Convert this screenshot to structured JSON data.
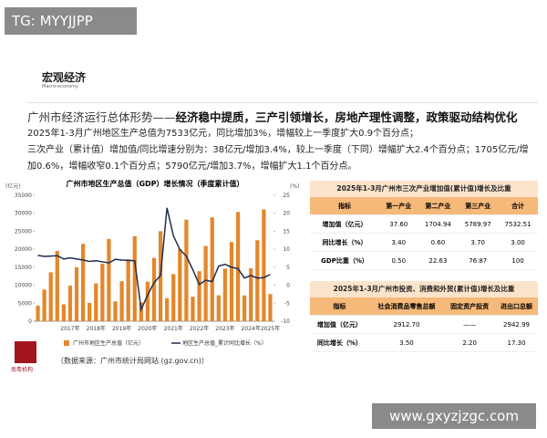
{
  "watermark": "TG: MYYJJPP",
  "section": {
    "title": "宏观经济",
    "subtitle": "Macro-economy"
  },
  "headline": {
    "lead": "广州市经济运行总体形势——",
    "emphasis": "经济稳中提质，三产引领增长，房地产理性调整，政策驱动结构优化"
  },
  "summary": [
    "2025年1-3月广州地区生产总值为7533亿元，同比增加3%，增幅较上一季度扩大0.9个百分点；",
    "三次产业（累计值）增加值/同比增速分别为：38亿元/增加3.4%，较上一季度（下同）增幅扩大2.4个百分点；1705亿元/增加0.6%，增幅收窄0.1个百分点；5790亿元/增加3.7%，增幅扩大1.1个百分点。"
  ],
  "chart_data": {
    "type": "bar",
    "title": "广州市地区生产总值（GDP）增长情况（季度累计值）",
    "ylabel": "(亿元)",
    "y2label": "(%)",
    "categories": [
      null,
      null,
      null,
      null,
      null,
      "2017年",
      null,
      null,
      null,
      "2018年",
      null,
      null,
      null,
      "2019年",
      null,
      null,
      null,
      "2020年",
      null,
      null,
      null,
      "2021年",
      null,
      null,
      null,
      "2022年",
      null,
      null,
      null,
      "2023年",
      null,
      null,
      null,
      "2024年",
      null,
      null,
      "2025年"
    ],
    "series": [
      {
        "name": "广州市地区生产总值（亿元）",
        "color": "#e3872c",
        "values": [
          4300,
          8800,
          13600,
          19547,
          4700,
          9900,
          15000,
          21503,
          5100,
          10500,
          16000,
          22859,
          5500,
          11100,
          17200,
          23628,
          5230,
          11000,
          17600,
          25019,
          6400,
          13100,
          20000,
          28232,
          6800,
          13900,
          20900,
          28839,
          7200,
          14600,
          22000,
          30356,
          7161,
          14700,
          22500,
          31032,
          7533
        ]
      },
      {
        "name": "地区生产总值_累计同比增长（%）",
        "type": "line",
        "axis": "y2",
        "color": "#1f2d4f",
        "values": [
          8.3,
          8.0,
          8.1,
          8.2,
          7.3,
          7.6,
          7.3,
          7.0,
          6.6,
          6.8,
          6.5,
          6.2,
          7.2,
          7.0,
          6.9,
          6.8,
          -6.8,
          -2.7,
          0.7,
          2.7,
          21.5,
          13.7,
          9.9,
          8.1,
          4.3,
          0.2,
          1.4,
          1.0,
          5.3,
          5.8,
          5.0,
          4.6,
          2.0,
          2.7,
          2.0,
          2.1,
          3.0
        ]
      }
    ],
    "ylim": [
      0,
      35000
    ],
    "yticks": [
      0,
      5000,
      10000,
      15000,
      20000,
      25000,
      30000,
      35000
    ],
    "y2lim": [
      -10,
      25
    ],
    "y2ticks": [
      -10,
      -5,
      0,
      5,
      10,
      15,
      20,
      25
    ]
  },
  "tables": [
    {
      "title": "2025年1-3月广州市三次产业增加值(累计值)增长及比重",
      "header": [
        "指标",
        "第一产业",
        "第二产业",
        "第三产业",
        "合计"
      ],
      "rows": [
        [
          "增加值（亿元）",
          "37.60",
          "1704.94",
          "5789.97",
          "7532.51"
        ],
        [
          "同比增长（%）",
          "3.40",
          "0.60",
          "3.70",
          "3.00"
        ],
        [
          "GDP比重（%）",
          "0.50",
          "22.63",
          "76.87",
          "100"
        ]
      ]
    },
    {
      "title": "2025年1-3月广州市投资、消费和外贸(累计值)增长及比重",
      "header": [
        "指标",
        "社会消费品零售总额",
        "固定资产投资",
        "进出口总额"
      ],
      "rows": [
        [
          "增加值（亿元）",
          "2912.70",
          "——",
          "2942.99"
        ],
        [
          "同比增长（%）",
          "3.50",
          "2.20",
          "17.30"
        ]
      ]
    }
  ],
  "source": "（数据来源：广州市统计局网站 (gz.gov.cn)）",
  "logo": "南粤机构",
  "site": "www.gxyzjzgc.com"
}
